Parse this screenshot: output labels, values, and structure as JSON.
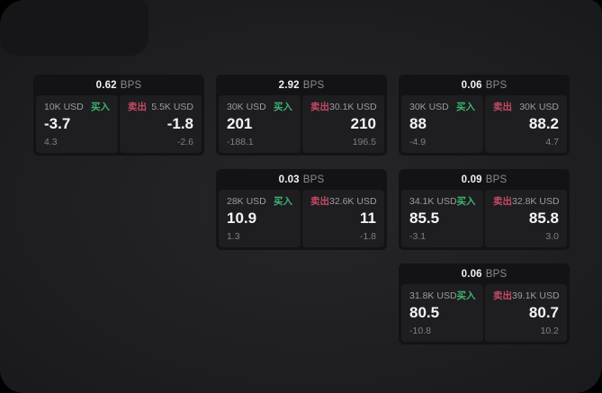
{
  "colors": {
    "background": "#000000",
    "surface": "#202023",
    "card": "#131316",
    "panel": "#1e1e21",
    "buy_green": "#3cb46e",
    "sell_red": "#c64a64",
    "text_primary": "#f5f5f7",
    "text_secondary": "#9b9ba1",
    "text_dim": "#7f7f85"
  },
  "cards": [
    {
      "bps": "0.62",
      "unit": "BPS",
      "buy": {
        "amount": "10K USD",
        "side": "买入",
        "value": "-3.7",
        "delta": "4.3"
      },
      "sell": {
        "side": "卖出",
        "amount": "5.5K USD",
        "value": "-1.8",
        "delta": "-2.6"
      }
    },
    {
      "bps": "2.92",
      "unit": "BPS",
      "buy": {
        "amount": "30K USD",
        "side": "买入",
        "value": "201",
        "delta": "-188.1"
      },
      "sell": {
        "side": "卖出",
        "amount": "30.1K USD",
        "value": "210",
        "delta": "196.5"
      }
    },
    {
      "bps": "0.06",
      "unit": "BPS",
      "buy": {
        "amount": "30K USD",
        "side": "买入",
        "value": "88",
        "delta": "-4.9"
      },
      "sell": {
        "side": "卖出",
        "amount": "30K USD",
        "value": "88.2",
        "delta": "4.7"
      }
    },
    {
      "bps": "0.03",
      "unit": "BPS",
      "buy": {
        "amount": "28K USD",
        "side": "买入",
        "value": "10.9",
        "delta": "1.3"
      },
      "sell": {
        "side": "卖出",
        "amount": "32.6K USD",
        "value": "11",
        "delta": "-1.8"
      }
    },
    {
      "bps": "0.09",
      "unit": "BPS",
      "buy": {
        "amount": "34.1K USD",
        "side": "买入",
        "value": "85.5",
        "delta": "-3.1"
      },
      "sell": {
        "side": "卖出",
        "amount": "32.8K USD",
        "value": "85.8",
        "delta": "3.0"
      }
    },
    {
      "bps": "0.06",
      "unit": "BPS",
      "buy": {
        "amount": "31.8K USD",
        "side": "买入",
        "value": "80.5",
        "delta": "-10.8"
      },
      "sell": {
        "side": "卖出",
        "amount": "39.1K USD",
        "value": "80.7",
        "delta": "10.2"
      }
    }
  ]
}
